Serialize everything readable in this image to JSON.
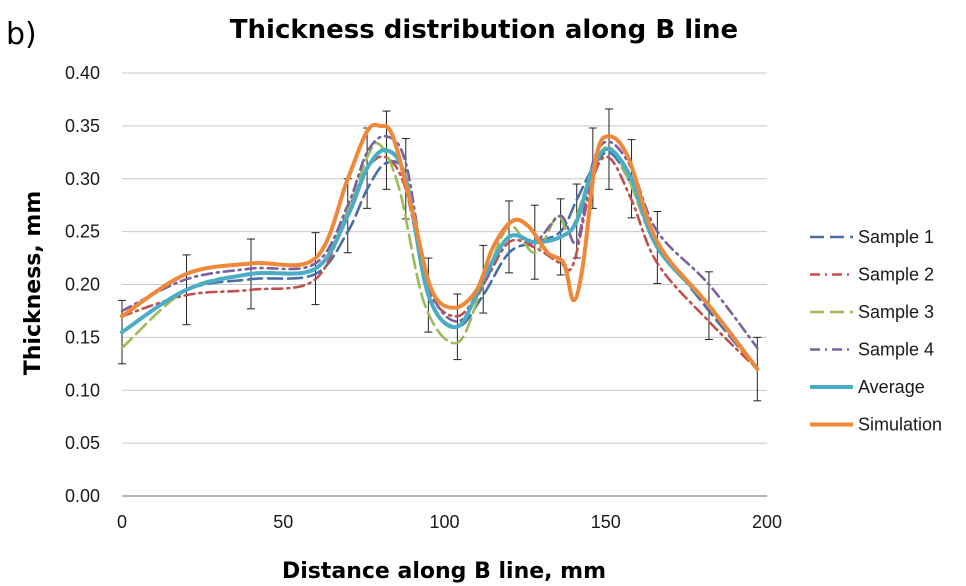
{
  "chart_data": {
    "type": "line",
    "panel_label": "b)",
    "title": "Thickness distribution along B line",
    "xlabel": "Distance along B line, mm",
    "ylabel": "Thickness, mm",
    "xlim": [
      0,
      200
    ],
    "ylim": [
      0,
      0.4
    ],
    "x_ticks": [
      "0",
      "50",
      "100",
      "150",
      "200"
    ],
    "y_ticks": [
      "0.00",
      "0.05",
      "0.10",
      "0.15",
      "0.20",
      "0.25",
      "0.30",
      "0.35",
      "0.40"
    ],
    "grid": "horizontal",
    "legend_position": "right",
    "series": [
      {
        "name": "Sample 1",
        "color": "#4a6fa5",
        "style": "dashed",
        "x": [
          0,
          20,
          40,
          60,
          70,
          76,
          82,
          88,
          95,
          104,
          112,
          120,
          128,
          136,
          141,
          146,
          151,
          157,
          166,
          182,
          197
        ],
        "y": [
          0.155,
          0.195,
          0.205,
          0.21,
          0.25,
          0.29,
          0.315,
          0.3,
          0.19,
          0.16,
          0.19,
          0.23,
          0.24,
          0.25,
          0.28,
          0.31,
          0.325,
          0.3,
          0.24,
          0.175,
          0.12
        ]
      },
      {
        "name": "Sample 2",
        "color": "#c0504d",
        "style": "dash-dot",
        "x": [
          0,
          20,
          40,
          60,
          70,
          76,
          82,
          88,
          95,
          104,
          112,
          120,
          128,
          136,
          140,
          146,
          151,
          158,
          166,
          182,
          197
        ],
        "y": [
          0.17,
          0.19,
          0.195,
          0.205,
          0.27,
          0.31,
          0.32,
          0.29,
          0.195,
          0.17,
          0.2,
          0.24,
          0.235,
          0.22,
          0.22,
          0.3,
          0.32,
          0.28,
          0.22,
          0.165,
          0.12
        ]
      },
      {
        "name": "Sample 3",
        "color": "#9bbb59",
        "style": "dashed",
        "x": [
          0,
          20,
          40,
          60,
          70,
          76,
          80,
          86,
          94,
          104,
          112,
          120,
          128,
          135,
          139,
          146,
          151,
          157,
          166,
          182,
          197
        ],
        "y": [
          0.14,
          0.195,
          0.21,
          0.215,
          0.27,
          0.32,
          0.332,
          0.29,
          0.18,
          0.145,
          0.2,
          0.255,
          0.23,
          0.265,
          0.25,
          0.31,
          0.33,
          0.3,
          0.235,
          0.18,
          0.12
        ]
      },
      {
        "name": "Sample 4",
        "color": "#7d60a0",
        "style": "dash-dot",
        "x": [
          0,
          20,
          40,
          60,
          70,
          76,
          82,
          88,
          95,
          104,
          112,
          120,
          128,
          136,
          141,
          146,
          151,
          158,
          166,
          182,
          197
        ],
        "y": [
          0.175,
          0.205,
          0.215,
          0.22,
          0.275,
          0.325,
          0.34,
          0.315,
          0.2,
          0.165,
          0.2,
          0.245,
          0.24,
          0.265,
          0.24,
          0.315,
          0.335,
          0.31,
          0.25,
          0.2,
          0.14
        ]
      },
      {
        "name": "Average",
        "color": "#4bacc6",
        "style": "solid",
        "x": [
          0,
          20,
          40,
          60,
          70,
          76,
          82,
          88,
          95,
          104,
          112,
          120,
          128,
          136,
          141,
          146,
          151,
          158,
          166,
          182,
          197
        ],
        "y": [
          0.155,
          0.195,
          0.21,
          0.215,
          0.265,
          0.31,
          0.327,
          0.3,
          0.19,
          0.16,
          0.205,
          0.245,
          0.24,
          0.245,
          0.26,
          0.31,
          0.328,
          0.3,
          0.235,
          0.18,
          0.12
        ],
        "error": [
          0.03,
          0.033,
          0.033,
          0.034,
          0.035,
          0.038,
          0.037,
          0.038,
          0.035,
          0.031,
          0.032,
          0.034,
          0.035,
          0.036,
          0.035,
          0.038,
          0.038,
          0.037,
          0.034,
          0.032,
          0.03
        ]
      },
      {
        "name": "Simulation",
        "color": "#f0883a",
        "style": "solid",
        "x": [
          0,
          20,
          40,
          60,
          70,
          76,
          80,
          84,
          90,
          96,
          103,
          110,
          115,
          121,
          126,
          132,
          137,
          140,
          143,
          147,
          151,
          157,
          166,
          182,
          197
        ],
        "y": [
          0.17,
          0.21,
          0.22,
          0.225,
          0.3,
          0.345,
          0.35,
          0.34,
          0.27,
          0.195,
          0.178,
          0.195,
          0.235,
          0.26,
          0.255,
          0.23,
          0.22,
          0.185,
          0.22,
          0.32,
          0.34,
          0.32,
          0.24,
          0.18,
          0.12
        ]
      }
    ]
  }
}
